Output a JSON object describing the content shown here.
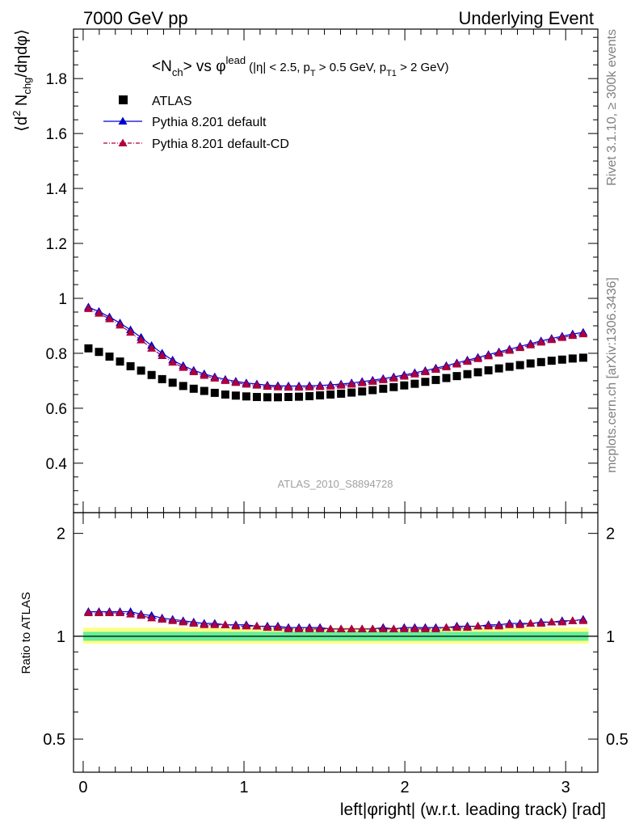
{
  "header": {
    "left": "7000 GeV pp",
    "right": "Underlying Event"
  },
  "side_labels": {
    "rivet": "Rivet 3.1.10, ≥ 300k events",
    "mcplots": "mcplots.cern.ch [arXiv:1306.3436]"
  },
  "watermark": "ATLAS_2010_S8894728",
  "main_title": {
    "head": "<N",
    "head_sub": "ch",
    "mid": "> vs φ",
    "mid_sup": "lead",
    "cuts_1": "(|η| < 2.5, p",
    "cuts_sub_1": "T",
    "cuts_2": " > 0.5 GeV, p",
    "cuts_sub_2": "T1",
    "cuts_3": " > 2 GeV)"
  },
  "ylabel_main": {
    "p1": "⟨d",
    "sup": "2",
    "p2": " N",
    "sub": "chg",
    "p3": "/dηdφ⟩"
  },
  "ylabel_ratio": "Ratio to ATLAS",
  "xlabel": "left|φright| (w.r.t. leading track) [rad]",
  "legend": [
    {
      "label": "ATLAS",
      "style": "data"
    },
    {
      "label": "Pythia 8.201 default",
      "style": "mc1"
    },
    {
      "label": "Pythia 8.201 default-CD",
      "style": "mc2"
    }
  ],
  "colors": {
    "data": "#000000",
    "mc1": "#0000cc",
    "mc2": "#b0003a",
    "band_inner": "#66ee99",
    "band_outer": "#ffff88"
  },
  "chart_data": {
    "type": "scatter",
    "xlim": [
      -0.06,
      3.2
    ],
    "ylim": [
      0.22,
      1.98
    ],
    "ratio_ylim": [
      0.4,
      2.3
    ],
    "ratio_log_scale": true,
    "x_ticks": [
      0,
      1,
      2,
      3
    ],
    "y_ticks": [
      0.4,
      0.6,
      0.8,
      1,
      1.2,
      1.4,
      1.6,
      1.8
    ],
    "ratio_ticks": [
      0.5,
      1,
      2
    ],
    "ratio_band_inner": [
      0.97,
      1.03
    ],
    "ratio_band_outer": [
      0.95,
      1.06
    ],
    "x": [
      0.0327,
      0.0982,
      0.1636,
      0.2291,
      0.2945,
      0.36,
      0.4254,
      0.4909,
      0.5563,
      0.6218,
      0.6872,
      0.7527,
      0.8181,
      0.8836,
      0.949,
      1.0145,
      1.0799,
      1.1454,
      1.2108,
      1.2763,
      1.3417,
      1.4072,
      1.4726,
      1.5381,
      1.6035,
      1.669,
      1.7344,
      1.7999,
      1.8653,
      1.9308,
      1.9962,
      2.0617,
      2.1271,
      2.1926,
      2.258,
      2.3235,
      2.3889,
      2.4544,
      2.5198,
      2.5853,
      2.6507,
      2.7162,
      2.7816,
      2.8471,
      2.9125,
      2.978,
      3.0434,
      3.1089
    ],
    "series": [
      {
        "name": "ATLAS",
        "values": [
          0.818,
          0.805,
          0.788,
          0.77,
          0.753,
          0.737,
          0.721,
          0.706,
          0.693,
          0.681,
          0.671,
          0.663,
          0.656,
          0.65,
          0.646,
          0.643,
          0.641,
          0.64,
          0.64,
          0.641,
          0.642,
          0.644,
          0.647,
          0.65,
          0.653,
          0.657,
          0.661,
          0.666,
          0.671,
          0.677,
          0.683,
          0.689,
          0.696,
          0.703,
          0.71,
          0.717,
          0.724,
          0.731,
          0.738,
          0.745,
          0.751,
          0.757,
          0.763,
          0.768,
          0.773,
          0.777,
          0.781,
          0.784
        ]
      },
      {
        "name": "Pythia 8.201 default",
        "values": [
          0.968,
          0.952,
          0.932,
          0.91,
          0.885,
          0.858,
          0.828,
          0.8,
          0.775,
          0.755,
          0.738,
          0.725,
          0.714,
          0.705,
          0.698,
          0.692,
          0.688,
          0.684,
          0.682,
          0.681,
          0.681,
          0.682,
          0.683,
          0.685,
          0.688,
          0.692,
          0.697,
          0.702,
          0.708,
          0.714,
          0.721,
          0.729,
          0.737,
          0.746,
          0.755,
          0.765,
          0.775,
          0.785,
          0.795,
          0.805,
          0.815,
          0.825,
          0.835,
          0.845,
          0.854,
          0.862,
          0.87,
          0.876
        ]
      },
      {
        "name": "Pythia 8.201 default-CD",
        "values": [
          0.962,
          0.945,
          0.925,
          0.902,
          0.876,
          0.848,
          0.818,
          0.791,
          0.767,
          0.748,
          0.732,
          0.719,
          0.709,
          0.7,
          0.693,
          0.687,
          0.683,
          0.679,
          0.677,
          0.676,
          0.676,
          0.677,
          0.678,
          0.68,
          0.683,
          0.687,
          0.692,
          0.697,
          0.703,
          0.709,
          0.716,
          0.724,
          0.732,
          0.741,
          0.75,
          0.76,
          0.77,
          0.78,
          0.79,
          0.8,
          0.81,
          0.82,
          0.83,
          0.84,
          0.849,
          0.857,
          0.864,
          0.87
        ]
      }
    ],
    "ratio_series": [
      {
        "name": "Pythia 8.201 default",
        "values": [
          1.18,
          1.18,
          1.18,
          1.18,
          1.18,
          1.16,
          1.15,
          1.13,
          1.12,
          1.11,
          1.1,
          1.09,
          1.09,
          1.08,
          1.08,
          1.08,
          1.07,
          1.07,
          1.07,
          1.06,
          1.06,
          1.06,
          1.06,
          1.05,
          1.05,
          1.05,
          1.05,
          1.05,
          1.06,
          1.05,
          1.06,
          1.06,
          1.06,
          1.06,
          1.06,
          1.07,
          1.07,
          1.07,
          1.08,
          1.08,
          1.09,
          1.09,
          1.09,
          1.1,
          1.1,
          1.11,
          1.11,
          1.12
        ]
      },
      {
        "name": "Pythia 8.201 default-CD",
        "values": [
          1.17,
          1.17,
          1.17,
          1.17,
          1.16,
          1.15,
          1.13,
          1.12,
          1.11,
          1.1,
          1.09,
          1.08,
          1.08,
          1.08,
          1.07,
          1.07,
          1.07,
          1.06,
          1.06,
          1.05,
          1.05,
          1.05,
          1.05,
          1.05,
          1.05,
          1.05,
          1.05,
          1.05,
          1.05,
          1.05,
          1.05,
          1.05,
          1.05,
          1.05,
          1.06,
          1.06,
          1.06,
          1.07,
          1.07,
          1.07,
          1.08,
          1.08,
          1.09,
          1.09,
          1.1,
          1.1,
          1.11,
          1.11
        ]
      }
    ]
  }
}
